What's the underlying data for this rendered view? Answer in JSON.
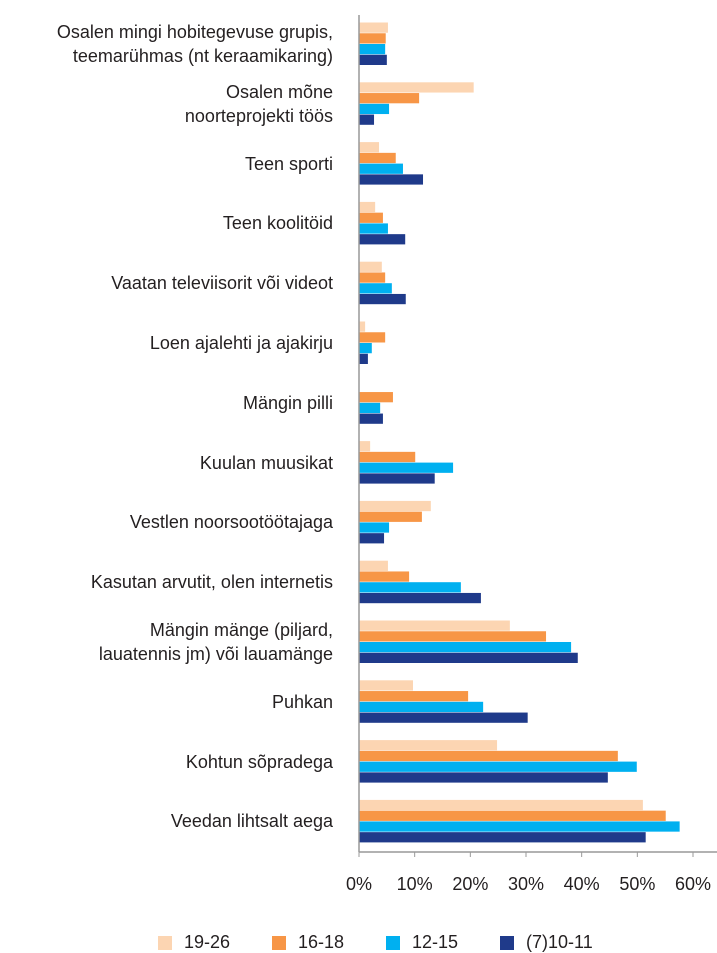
{
  "chart_data": {
    "type": "hbar",
    "categories": [
      "Osalen mingi hobitegevuse grupis,\nteemarühmas (nt keraamikaring)",
      "Osalen mõne\nnoorteprojekti töös",
      "Teen sporti",
      "Teen koolitöid",
      "Vaatan televiisorit või videot",
      "Loen ajalehti ja ajakirju",
      "Mängin pilli",
      "Kuulan muusikat",
      "Vestlen noorsootöötajaga",
      "Kasutan arvutit, olen internetis",
      "Mängin mänge (piljard,\nlauatennis jm) või lauamänge",
      "Puhkan",
      "Kohtun sõpradega",
      "Veedan lihtsalt aega"
    ],
    "series": [
      {
        "name": "19-26",
        "color": "#fcd5b2",
        "values": [
          5.2,
          20.6,
          3.6,
          2.9,
          4.1,
          1.1,
          0,
          2.0,
          12.9,
          5.2,
          27.1,
          9.7,
          24.8,
          51.0
        ]
      },
      {
        "name": "16-18",
        "color": "#f79646",
        "values": [
          4.8,
          10.8,
          6.6,
          4.3,
          4.7,
          4.7,
          6.1,
          10.1,
          11.3,
          9.0,
          33.6,
          19.6,
          46.5,
          55.1
        ]
      },
      {
        "name": "12-15",
        "color": "#00b0f0",
        "values": [
          4.7,
          5.4,
          7.9,
          5.2,
          5.9,
          2.3,
          3.8,
          16.9,
          5.4,
          18.3,
          38.1,
          22.3,
          49.9,
          57.6
        ]
      },
      {
        "name": "(7)10-11",
        "color": "#1f3a8a",
        "values": [
          5.0,
          2.7,
          11.5,
          8.3,
          8.4,
          1.6,
          4.3,
          13.6,
          4.5,
          21.9,
          39.3,
          30.3,
          44.7,
          51.5
        ]
      }
    ],
    "xlim": [
      0,
      60
    ],
    "xticks": [
      {
        "value": 0,
        "label": "0%"
      },
      {
        "value": 10,
        "label": "10%"
      },
      {
        "value": 20,
        "label": "20%"
      },
      {
        "value": 30,
        "label": "30%"
      },
      {
        "value": 40,
        "label": "40%"
      },
      {
        "value": 50,
        "label": "50%"
      },
      {
        "value": 60,
        "label": "60%"
      }
    ],
    "legend": "bottom"
  }
}
